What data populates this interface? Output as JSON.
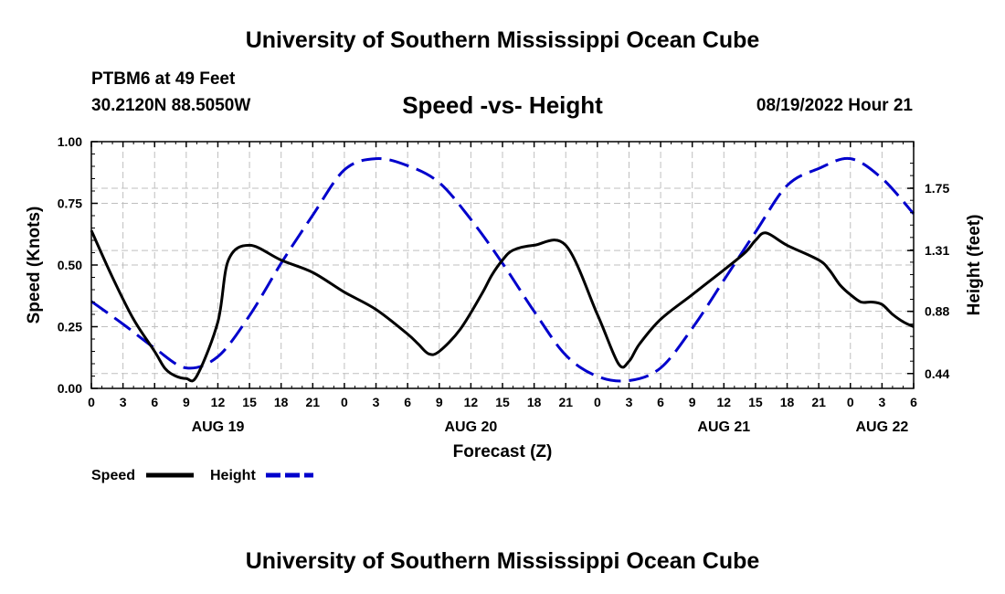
{
  "header": {
    "title": "University of Southern Mississippi Ocean Cube",
    "station": "PTBM6 at 49 Feet",
    "coordinates": "30.2120N  88.5050W",
    "subtitle": "Speed -vs- Height",
    "datetime": "08/19/2022 Hour 21"
  },
  "footer": {
    "title": "University of Southern Mississippi Ocean Cube"
  },
  "colors": {
    "speed": "#000000",
    "height": "#0000cc",
    "grid": "#bfbfbf"
  },
  "chart_data": {
    "type": "line",
    "xlabel": "Forecast (Z)",
    "ylabel": "Speed (Knots)",
    "y2label": "Height (feet)",
    "x_unit": "hours since Aug 19 00Z",
    "xlim": [
      0,
      78
    ],
    "ylim": [
      0,
      1.0
    ],
    "y2lim": [
      0.335,
      2.08
    ],
    "x_tick_positions": [
      0,
      3,
      6,
      9,
      12,
      15,
      18,
      21,
      24,
      27,
      30,
      33,
      36,
      39,
      42,
      45,
      48,
      51,
      54,
      57,
      60,
      63,
      66,
      69,
      72,
      75,
      78
    ],
    "x_tick_labels": [
      "0",
      "3",
      "6",
      "9",
      "12",
      "15",
      "18",
      "21",
      "0",
      "3",
      "6",
      "9",
      "12",
      "15",
      "18",
      "21",
      "0",
      "3",
      "6",
      "9",
      "12",
      "15",
      "18",
      "21",
      "0",
      "3",
      "6"
    ],
    "date_labels": [
      {
        "x": 12,
        "label": "AUG 19"
      },
      {
        "x": 36,
        "label": "AUG 20"
      },
      {
        "x": 60,
        "label": "AUG 21"
      },
      {
        "x": 75,
        "label": "AUG 22"
      }
    ],
    "y_ticks": [
      0.0,
      0.25,
      0.5,
      0.75,
      1.0
    ],
    "y_tick_labels": [
      "0.00",
      "0.25",
      "0.50",
      "0.75",
      "1.00"
    ],
    "y2_ticks": [
      0.44,
      0.88,
      1.31,
      1.75
    ],
    "y2_tick_labels": [
      "0.44",
      "0.88",
      "1.31",
      "1.75"
    ],
    "legend": [
      {
        "name": "Speed",
        "style": "solid"
      },
      {
        "name": "Height",
        "style": "dashed"
      }
    ],
    "series": [
      {
        "name": "Speed",
        "axis": "left",
        "x": [
          0,
          2,
          4,
          6,
          7,
          8,
          9,
          10,
          12,
          13,
          15,
          18,
          21,
          24,
          27,
          30,
          31,
          32,
          33,
          35,
          37,
          38,
          39,
          40,
          42,
          45,
          48,
          50,
          51,
          52,
          54,
          57,
          60,
          62,
          63,
          64,
          66,
          69,
          70,
          71,
          72,
          73,
          74,
          75,
          76,
          77,
          78
        ],
        "values": [
          0.64,
          0.45,
          0.28,
          0.15,
          0.08,
          0.05,
          0.04,
          0.05,
          0.27,
          0.52,
          0.58,
          0.52,
          0.47,
          0.39,
          0.32,
          0.22,
          0.18,
          0.14,
          0.15,
          0.24,
          0.38,
          0.46,
          0.52,
          0.56,
          0.58,
          0.58,
          0.3,
          0.1,
          0.11,
          0.18,
          0.28,
          0.38,
          0.48,
          0.55,
          0.6,
          0.63,
          0.58,
          0.52,
          0.48,
          0.42,
          0.38,
          0.35,
          0.35,
          0.34,
          0.3,
          0.27,
          0.25
        ]
      },
      {
        "name": "Height",
        "axis": "right",
        "x": [
          0,
          3,
          6,
          9,
          12,
          15,
          18,
          21,
          24,
          27,
          30,
          33,
          36,
          39,
          42,
          45,
          48,
          51,
          54,
          57,
          60,
          63,
          66,
          69,
          72,
          75,
          78
        ],
        "values": [
          0.95,
          0.79,
          0.62,
          0.48,
          0.56,
          0.85,
          1.22,
          1.56,
          1.88,
          1.96,
          1.91,
          1.79,
          1.53,
          1.22,
          0.88,
          0.57,
          0.42,
          0.39,
          0.48,
          0.76,
          1.1,
          1.44,
          1.77,
          1.89,
          1.96,
          1.82,
          1.57
        ]
      }
    ]
  }
}
